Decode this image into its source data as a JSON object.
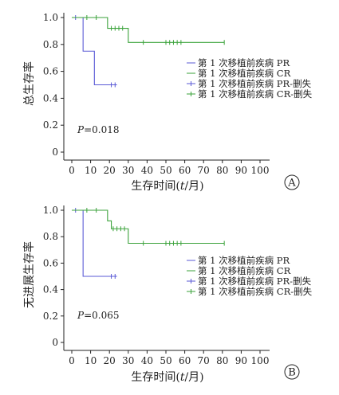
{
  "colors": {
    "pr": "#5a5ad6",
    "cr": "#3aa23a",
    "axis": "#222222"
  },
  "chart_data": [
    {
      "type": "line",
      "panel": "A",
      "ylabel": "总生存率",
      "xlabel_prefix": "生存时间(",
      "xlabel_italic": "t",
      "xlabel_suffix": "/月)",
      "xlim": [
        0,
        100
      ],
      "ylim": [
        0,
        1.0
      ],
      "xticks": [
        "0",
        "10",
        "20",
        "30",
        "40",
        "50",
        "60",
        "70",
        "80",
        "90",
        "100"
      ],
      "yticks": [
        "0",
        "0.2",
        "0.4",
        "0.6",
        "0.8",
        "1.0"
      ],
      "p_italic": "P",
      "p_rest": "=0.018",
      "legend": [
        "第 1 次移植前疾病 PR",
        "第 1 次移植前疾病 CR",
        "第 1 次移植前疾病 PR-删失",
        "第 1 次移植前疾病 CR-删失"
      ],
      "series": [
        {
          "name": "第 1 次移植前疾病 PR",
          "group": "pr",
          "steps": [
            [
              0,
              1.0
            ],
            [
              6,
              0.75
            ],
            [
              12,
              0.5
            ],
            [
              24,
              0.5
            ]
          ],
          "censored": [
            [
              2,
              1.0
            ],
            [
              21,
              0.5
            ],
            [
              23,
              0.5
            ]
          ]
        },
        {
          "name": "第 1 次移植前疾病 CR",
          "group": "cr",
          "steps": [
            [
              0,
              1.0
            ],
            [
              19,
              0.92
            ],
            [
              30,
              0.815
            ],
            [
              81,
              0.815
            ]
          ],
          "censored": [
            [
              8,
              1.0
            ],
            [
              13,
              1.0
            ],
            [
              21,
              0.92
            ],
            [
              23,
              0.92
            ],
            [
              25,
              0.92
            ],
            [
              27,
              0.92
            ],
            [
              38,
              0.815
            ],
            [
              50,
              0.815
            ],
            [
              52,
              0.815
            ],
            [
              54,
              0.815
            ],
            [
              56,
              0.815
            ],
            [
              58,
              0.815
            ],
            [
              81,
              0.815
            ]
          ]
        }
      ]
    },
    {
      "type": "line",
      "panel": "B",
      "ylabel": "无进展生存率",
      "xlabel_prefix": "生存时间(",
      "xlabel_italic": "t",
      "xlabel_suffix": "/月)",
      "xlim": [
        0,
        100
      ],
      "ylim": [
        0,
        1.0
      ],
      "xticks": [
        "0",
        "10",
        "20",
        "30",
        "40",
        "50",
        "60",
        "70",
        "80",
        "90",
        "100"
      ],
      "yticks": [
        "0",
        "0.2",
        "0.4",
        "0.6",
        "0.8",
        "1.0"
      ],
      "p_italic": "P",
      "p_rest": "=0.065",
      "legend": [
        "第 1 次移植前疾病 PR",
        "第 1 次移植前疾病 CR",
        "第 1 次移植前疾病 PR-删失",
        "第 1 次移植前疾病 CR-删失"
      ],
      "series": [
        {
          "name": "第 1 次移植前疾病 PR",
          "group": "pr",
          "steps": [
            [
              0,
              1.0
            ],
            [
              6,
              0.5
            ],
            [
              24,
              0.5
            ]
          ],
          "censored": [
            [
              2,
              1.0
            ],
            [
              21,
              0.5
            ],
            [
              23,
              0.5
            ]
          ]
        },
        {
          "name": "第 1 次移植前疾病 CR",
          "group": "cr",
          "steps": [
            [
              0,
              1.0
            ],
            [
              19,
              0.92
            ],
            [
              21,
              0.86
            ],
            [
              30,
              0.75
            ],
            [
              81,
              0.75
            ]
          ],
          "censored": [
            [
              8,
              1.0
            ],
            [
              13,
              1.0
            ],
            [
              22,
              0.86
            ],
            [
              24,
              0.86
            ],
            [
              26,
              0.86
            ],
            [
              28,
              0.86
            ],
            [
              38,
              0.75
            ],
            [
              50,
              0.75
            ],
            [
              52,
              0.75
            ],
            [
              54,
              0.75
            ],
            [
              56,
              0.75
            ],
            [
              58,
              0.75
            ],
            [
              81,
              0.75
            ]
          ]
        }
      ]
    }
  ]
}
